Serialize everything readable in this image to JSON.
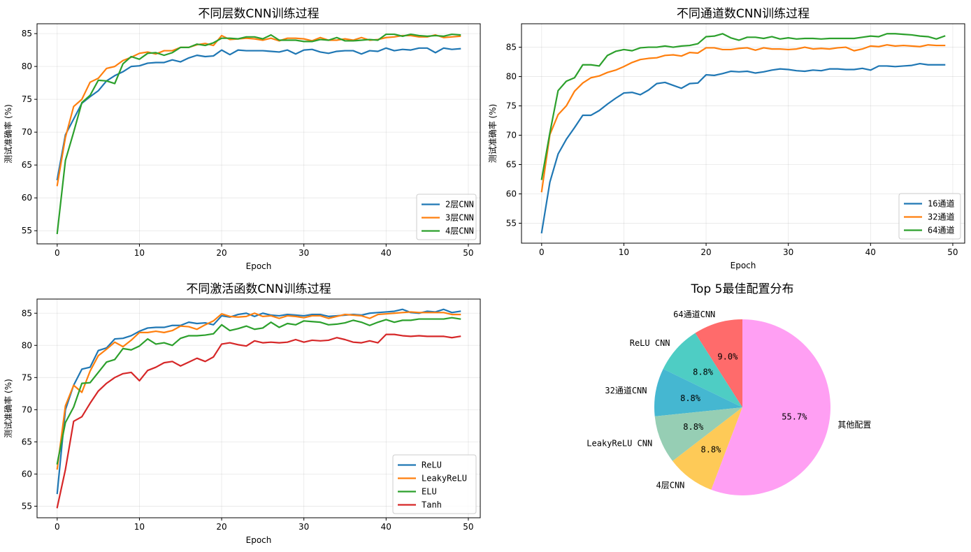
{
  "chart_data": [
    {
      "type": "line",
      "title": "不同层数CNN训练过程",
      "xlabel": "Epoch",
      "ylabel": "测试准确率 (%)",
      "xlim": [
        -2.45,
        51.45
      ],
      "ylim": [
        53.0,
        86.5
      ],
      "xticks": [
        0,
        10,
        20,
        30,
        40,
        50
      ],
      "yticks": [
        55,
        60,
        65,
        70,
        75,
        80,
        85
      ],
      "grid": true,
      "legend": "lower-right",
      "series": [
        {
          "name": "2层CNN",
          "color": "#1f77b4",
          "values": [
            62.8,
            69.6,
            72.0,
            74.4,
            75.4,
            76.3,
            77.8,
            78.6,
            79.2,
            80.0,
            80.1,
            80.5,
            80.6,
            80.6,
            81.0,
            80.7,
            81.3,
            81.7,
            81.5,
            81.6,
            82.5,
            81.8,
            82.5,
            82.4,
            82.4,
            82.4,
            82.3,
            82.2,
            82.5,
            81.9,
            82.5,
            82.6,
            82.2,
            82.0,
            82.3,
            82.4,
            82.4,
            81.9,
            82.4,
            82.3,
            82.8,
            82.4,
            82.6,
            82.5,
            82.8,
            82.8,
            82.1,
            82.8,
            82.6,
            82.7
          ]
        },
        {
          "name": "3层CNN",
          "color": "#ff7f0e",
          "values": [
            61.9,
            69.2,
            73.9,
            75.0,
            77.6,
            78.2,
            79.7,
            80.0,
            80.9,
            81.4,
            82.0,
            82.2,
            81.9,
            82.4,
            82.4,
            82.9,
            82.9,
            83.3,
            83.5,
            83.2,
            84.7,
            84.1,
            84.2,
            84.3,
            84.2,
            84.0,
            84.3,
            83.9,
            84.3,
            84.3,
            84.2,
            83.9,
            84.4,
            84.0,
            84.0,
            84.2,
            84.0,
            84.4,
            84.0,
            84.1,
            84.4,
            84.5,
            84.7,
            84.7,
            84.5,
            84.5,
            84.8,
            84.4,
            84.5,
            84.6
          ]
        },
        {
          "name": "4层CNN",
          "color": "#2ca02c",
          "values": [
            54.6,
            65.7,
            70.0,
            74.5,
            75.6,
            77.9,
            77.8,
            77.4,
            80.4,
            81.5,
            81.1,
            82.0,
            82.1,
            81.7,
            82.1,
            82.9,
            82.9,
            83.4,
            83.2,
            83.6,
            84.3,
            84.3,
            84.2,
            84.5,
            84.5,
            84.2,
            84.8,
            84.0,
            84.0,
            84.0,
            83.8,
            83.8,
            84.1,
            84.0,
            84.4,
            83.9,
            83.9,
            84.0,
            84.1,
            84.0,
            84.9,
            84.9,
            84.6,
            84.9,
            84.7,
            84.6,
            84.7,
            84.6,
            84.9,
            84.8
          ]
        }
      ]
    },
    {
      "type": "line",
      "title": "不同通道数CNN训练过程",
      "xlabel": "Epoch",
      "ylabel": "测试准确率 (%)",
      "xlim": [
        -2.45,
        51.45
      ],
      "ylim": [
        51.6,
        89.0
      ],
      "xticks": [
        0,
        10,
        20,
        30,
        40,
        50
      ],
      "yticks": [
        55,
        60,
        65,
        70,
        75,
        80,
        85
      ],
      "grid": true,
      "legend": "lower-right",
      "series": [
        {
          "name": "16通道",
          "color": "#1f77b4",
          "values": [
            53.4,
            62.0,
            66.8,
            69.3,
            71.3,
            73.4,
            73.4,
            74.2,
            75.3,
            76.3,
            77.2,
            77.3,
            76.9,
            77.7,
            78.8,
            79.0,
            78.5,
            78.0,
            78.8,
            78.9,
            80.3,
            80.2,
            80.5,
            80.9,
            80.8,
            80.9,
            80.6,
            80.8,
            81.1,
            81.3,
            81.2,
            81.0,
            80.9,
            81.1,
            81.0,
            81.3,
            81.3,
            81.2,
            81.2,
            81.4,
            81.1,
            81.8,
            81.8,
            81.7,
            81.8,
            81.9,
            82.2,
            82.0,
            82.0,
            82.0
          ]
        },
        {
          "name": "32通道",
          "color": "#ff7f0e",
          "values": [
            60.4,
            70.1,
            73.5,
            75.0,
            77.5,
            78.9,
            79.8,
            80.1,
            80.7,
            81.1,
            81.7,
            82.4,
            82.9,
            83.1,
            83.2,
            83.6,
            83.7,
            83.5,
            84.1,
            84.0,
            84.9,
            84.9,
            84.6,
            84.6,
            84.8,
            84.9,
            84.5,
            84.9,
            84.7,
            84.7,
            84.6,
            84.7,
            85.0,
            84.7,
            84.8,
            84.7,
            84.9,
            85.0,
            84.4,
            84.7,
            85.2,
            85.1,
            85.4,
            85.2,
            85.3,
            85.2,
            85.1,
            85.4,
            85.3,
            85.3
          ]
        },
        {
          "name": "64通道",
          "color": "#2ca02c",
          "values": [
            62.5,
            70.4,
            77.6,
            79.2,
            79.8,
            82.0,
            82.0,
            81.8,
            83.6,
            84.3,
            84.6,
            84.4,
            84.9,
            85.0,
            85.0,
            85.2,
            85.0,
            85.2,
            85.3,
            85.6,
            86.8,
            86.9,
            87.3,
            86.6,
            86.2,
            86.7,
            86.7,
            86.5,
            86.8,
            86.4,
            86.6,
            86.4,
            86.5,
            86.5,
            86.4,
            86.5,
            86.5,
            86.5,
            86.5,
            86.7,
            86.9,
            86.8,
            87.3,
            87.3,
            87.2,
            87.1,
            86.9,
            86.8,
            86.4,
            86.9
          ]
        }
      ]
    },
    {
      "type": "line",
      "title": "不同激活函数CNN训练过程",
      "xlabel": "Epoch",
      "ylabel": "测试准确率 (%)",
      "xlim": [
        -2.45,
        51.45
      ],
      "ylim": [
        53.2,
        87.2
      ],
      "xticks": [
        0,
        10,
        20,
        30,
        40,
        50
      ],
      "yticks": [
        55,
        60,
        65,
        70,
        75,
        80,
        85
      ],
      "grid": true,
      "legend": "lower-right",
      "series": [
        {
          "name": "ReLU",
          "color": "#1f77b4",
          "values": [
            57.0,
            70.0,
            73.8,
            76.3,
            76.6,
            79.2,
            79.6,
            81.0,
            81.1,
            81.5,
            82.2,
            82.7,
            82.8,
            82.8,
            83.1,
            83.1,
            83.6,
            83.4,
            83.5,
            83.2,
            84.6,
            84.4,
            84.8,
            85.0,
            84.5,
            85.0,
            84.7,
            84.6,
            84.8,
            84.7,
            84.6,
            84.8,
            84.8,
            84.5,
            84.6,
            84.7,
            84.8,
            84.7,
            85.0,
            85.1,
            85.2,
            85.3,
            85.6,
            85.1,
            85.0,
            85.3,
            85.2,
            85.6,
            85.1,
            85.3
          ]
        },
        {
          "name": "LeakyReLU",
          "color": "#ff7f0e",
          "values": [
            60.8,
            70.6,
            73.8,
            72.7,
            76.0,
            78.4,
            79.4,
            80.5,
            79.8,
            80.8,
            82.0,
            82.0,
            82.2,
            82.0,
            82.3,
            83.0,
            82.9,
            82.5,
            83.2,
            83.8,
            84.9,
            84.5,
            84.4,
            84.5,
            85.0,
            84.5,
            84.6,
            84.2,
            84.6,
            84.5,
            84.3,
            84.6,
            84.6,
            84.2,
            84.5,
            84.8,
            84.7,
            84.6,
            84.2,
            84.8,
            84.9,
            85.0,
            85.1,
            85.2,
            85.1,
            85.1,
            85.1,
            85.1,
            84.8,
            84.8
          ]
        },
        {
          "name": "ELU",
          "color": "#2ca02c",
          "values": [
            61.6,
            68.0,
            70.4,
            74.1,
            74.2,
            75.8,
            77.4,
            77.8,
            79.5,
            79.3,
            79.9,
            81.0,
            80.2,
            80.4,
            80.0,
            81.1,
            81.5,
            81.5,
            81.6,
            81.8,
            83.2,
            82.3,
            82.6,
            83.0,
            82.5,
            82.7,
            83.6,
            82.8,
            83.4,
            83.2,
            83.8,
            83.7,
            83.6,
            83.2,
            83.3,
            83.5,
            83.9,
            83.6,
            83.1,
            83.6,
            84.0,
            83.6,
            83.9,
            83.9,
            84.1,
            84.1,
            84.1,
            84.1,
            84.3,
            84.1
          ]
        },
        {
          "name": "Tanh",
          "color": "#d62728",
          "values": [
            54.8,
            60.7,
            68.2,
            68.9,
            71.0,
            72.9,
            74.1,
            75.0,
            75.6,
            75.8,
            74.5,
            76.1,
            76.6,
            77.3,
            77.5,
            76.8,
            77.4,
            78.0,
            77.5,
            78.2,
            80.2,
            80.4,
            80.1,
            79.9,
            80.7,
            80.4,
            80.5,
            80.4,
            80.5,
            80.9,
            80.5,
            80.8,
            80.7,
            80.8,
            81.2,
            80.9,
            80.5,
            80.4,
            80.7,
            80.4,
            81.7,
            81.7,
            81.5,
            81.4,
            81.5,
            81.4,
            81.4,
            81.4,
            81.2,
            81.4
          ]
        }
      ]
    },
    {
      "type": "pie",
      "title": "Top 5最佳配置分布",
      "slices": [
        {
          "label": "64通道CNN",
          "value": 9.0,
          "pct": "9.0%",
          "color": "#ff6b6b"
        },
        {
          "label": "ReLU CNN",
          "value": 8.8,
          "pct": "8.8%",
          "color": "#4ecdc4"
        },
        {
          "label": "32通道CNN",
          "value": 8.8,
          "pct": "8.8%",
          "color": "#45b7d1"
        },
        {
          "label": "LeakyReLU CNN",
          "value": 8.8,
          "pct": "8.8%",
          "color": "#96ceb4"
        },
        {
          "label": "4层CNN",
          "value": 8.8,
          "pct": "8.8%",
          "color": "#feca57"
        },
        {
          "label": "其他配置",
          "value": 55.7,
          "pct": "55.7%",
          "color": "#ff9ff3"
        }
      ]
    }
  ]
}
